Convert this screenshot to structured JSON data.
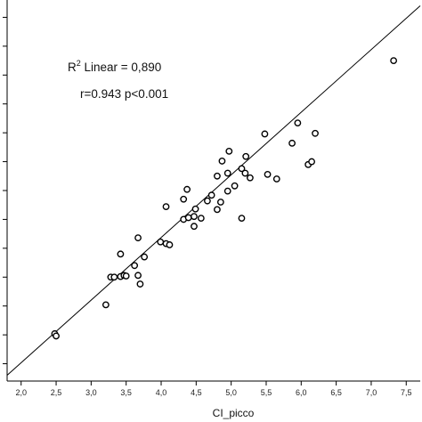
{
  "chart_data": {
    "type": "scatter",
    "title": "",
    "xlabel": "CI_picco",
    "ylabel": "",
    "xlim": [
      1.8,
      7.7
    ],
    "ylim": [
      1.2,
      7.8
    ],
    "x_ticks": [
      2.0,
      2.5,
      3.0,
      3.5,
      4.0,
      4.5,
      5.0,
      5.5,
      6.0,
      6.5,
      7.0,
      7.5
    ],
    "x_tick_labels": [
      "2,0",
      "2,5",
      "3,0",
      "3,5",
      "4,0",
      "4,5",
      "5,0",
      "5,5",
      "6,0",
      "6,5",
      "7,0",
      "7,5"
    ],
    "y_tick_values": [
      1.5,
      2.0,
      2.5,
      3.0,
      3.5,
      4.0,
      4.5,
      5.0,
      5.5,
      6.0,
      6.5,
      7.0,
      7.5
    ],
    "grid": false,
    "legend": "none",
    "fit_line": {
      "x": [
        1.8,
        7.7
      ],
      "y": [
        1.3,
        7.7
      ]
    },
    "annotations": {
      "r2_prefix": "R",
      "r2_sup": "2",
      "r2_text": " Linear = 0,890",
      "stats_text": "r=0.943 p<0.001"
    },
    "points": [
      {
        "x": 2.48,
        "y": 2.02
      },
      {
        "x": 2.5,
        "y": 1.98
      },
      {
        "x": 3.21,
        "y": 2.52
      },
      {
        "x": 3.28,
        "y": 3.0
      },
      {
        "x": 3.33,
        "y": 3.0
      },
      {
        "x": 3.42,
        "y": 3.01
      },
      {
        "x": 3.47,
        "y": 3.03
      },
      {
        "x": 3.42,
        "y": 3.4
      },
      {
        "x": 3.5,
        "y": 3.02
      },
      {
        "x": 3.62,
        "y": 3.2
      },
      {
        "x": 3.67,
        "y": 3.03
      },
      {
        "x": 3.67,
        "y": 3.68
      },
      {
        "x": 3.7,
        "y": 2.88
      },
      {
        "x": 3.76,
        "y": 3.35
      },
      {
        "x": 3.99,
        "y": 3.61
      },
      {
        "x": 4.07,
        "y": 3.58
      },
      {
        "x": 4.12,
        "y": 3.56
      },
      {
        "x": 4.07,
        "y": 4.22
      },
      {
        "x": 4.32,
        "y": 4.0
      },
      {
        "x": 4.32,
        "y": 4.35
      },
      {
        "x": 4.37,
        "y": 4.52
      },
      {
        "x": 4.39,
        "y": 4.03
      },
      {
        "x": 4.47,
        "y": 3.88
      },
      {
        "x": 4.47,
        "y": 4.05
      },
      {
        "x": 4.49,
        "y": 4.18
      },
      {
        "x": 4.57,
        "y": 4.02
      },
      {
        "x": 4.66,
        "y": 4.32
      },
      {
        "x": 4.72,
        "y": 4.42
      },
      {
        "x": 4.8,
        "y": 4.17
      },
      {
        "x": 4.85,
        "y": 4.3
      },
      {
        "x": 4.8,
        "y": 4.75
      },
      {
        "x": 4.87,
        "y": 5.01
      },
      {
        "x": 4.95,
        "y": 4.49
      },
      {
        "x": 4.95,
        "y": 4.8
      },
      {
        "x": 4.97,
        "y": 5.18
      },
      {
        "x": 5.05,
        "y": 4.58
      },
      {
        "x": 5.15,
        "y": 4.88
      },
      {
        "x": 5.15,
        "y": 4.02
      },
      {
        "x": 5.2,
        "y": 4.8
      },
      {
        "x": 5.21,
        "y": 5.09
      },
      {
        "x": 5.27,
        "y": 4.72
      },
      {
        "x": 5.48,
        "y": 5.48
      },
      {
        "x": 5.52,
        "y": 4.78
      },
      {
        "x": 5.65,
        "y": 4.7
      },
      {
        "x": 5.87,
        "y": 5.32
      },
      {
        "x": 5.95,
        "y": 5.67
      },
      {
        "x": 6.1,
        "y": 4.95
      },
      {
        "x": 6.15,
        "y": 5.0
      },
      {
        "x": 6.2,
        "y": 5.49
      },
      {
        "x": 7.32,
        "y": 6.75
      }
    ]
  }
}
